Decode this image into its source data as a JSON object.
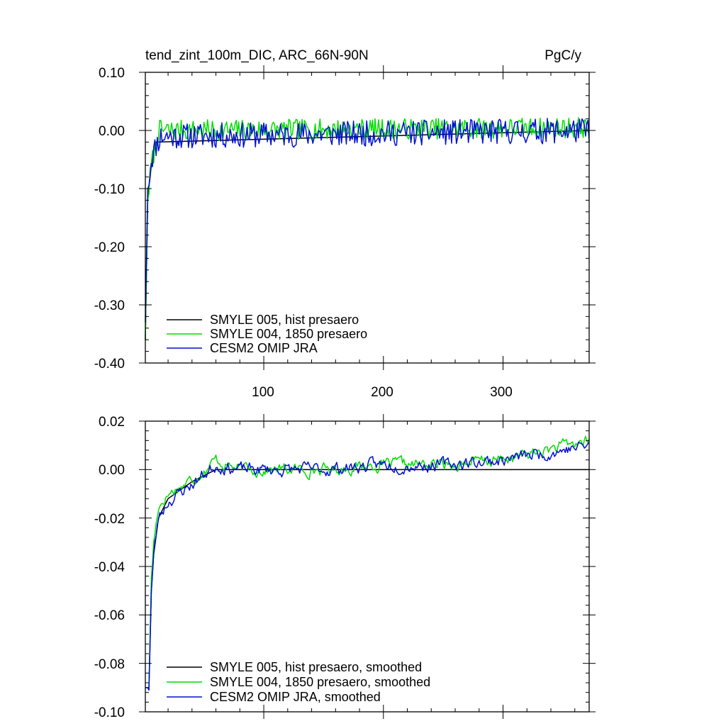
{
  "chart_data": [
    {
      "type": "line",
      "title": "tend_zint_100m_DIC, ARC_66N-90N",
      "units": "PgC/y",
      "xlim": [
        1,
        372
      ],
      "ylim": [
        -0.4,
        0.1
      ],
      "x_tick_labels": [
        "100",
        "200",
        "300"
      ],
      "y_tick_labels": [
        "0.10",
        "0.00",
        "-0.10",
        "-0.20",
        "-0.30",
        "-0.40"
      ],
      "legend": {
        "placement": "bottom-left",
        "entries": [
          "SMYLE 005, hist presaero",
          "SMYLE 004, 1850 presaero",
          "CESM2 OMIP JRA"
        ]
      },
      "series": [
        {
          "name": "SMYLE 005, hist presaero",
          "color": "#000000",
          "anchors": [
            [
              1,
              -0.36
            ],
            [
              3,
              -0.12
            ],
            [
              6,
              -0.06
            ],
            [
              10,
              -0.02
            ],
            [
              372,
              0.0
            ]
          ],
          "noise": 0,
          "seed": 3
        },
        {
          "name": "SMYLE 004, 1850 presaero",
          "color": "#00dd00",
          "anchors": [
            [
              1,
              -0.36
            ],
            [
              3,
              -0.12
            ],
            [
              6,
              -0.06
            ],
            [
              10,
              -0.02
            ],
            [
              12,
              0.0
            ],
            [
              372,
              0.005
            ]
          ],
          "noise": 0.018,
          "seed": 7
        },
        {
          "name": "CESM2 OMIP JRA",
          "color": "#0010d0",
          "anchors": [
            [
              1,
              -0.33
            ],
            [
              3,
              -0.1
            ],
            [
              6,
              -0.05
            ],
            [
              10,
              -0.025
            ],
            [
              14,
              -0.01
            ],
            [
              372,
              0.0
            ]
          ],
          "noise": 0.022,
          "seed": 11
        }
      ]
    },
    {
      "type": "line",
      "xlim": [
        1,
        372
      ],
      "ylim": [
        -0.1,
        0.02
      ],
      "y_tick_labels": [
        "0.02",
        "0.00",
        "-0.02",
        "-0.04",
        "-0.06",
        "-0.08",
        "-0.10"
      ],
      "legend": {
        "placement": "bottom-left",
        "entries": [
          "SMYLE 005, hist presaero, smoothed",
          "SMYLE 004, 1850 presaero, smoothed",
          "CESM2 OMIP JRA, smoothed"
        ]
      },
      "series": [
        {
          "name": "SMYLE 005, hist presaero, smoothed",
          "color": "#000000",
          "anchors": [
            [
              4,
              -0.09
            ],
            [
              6,
              -0.05
            ],
            [
              8,
              -0.035
            ],
            [
              12,
              -0.02
            ],
            [
              20,
              -0.012
            ],
            [
              40,
              -0.005
            ],
            [
              60,
              0.0
            ],
            [
              372,
              0.0
            ]
          ],
          "noise": 0,
          "seed": 5
        },
        {
          "name": "SMYLE 004, 1850 presaero, smoothed",
          "color": "#00dd00",
          "anchors": [
            [
              4,
              -0.09
            ],
            [
              6,
              -0.045
            ],
            [
              8,
              -0.03
            ],
            [
              12,
              -0.015
            ],
            [
              20,
              -0.01
            ],
            [
              40,
              -0.004
            ],
            [
              60,
              0.004
            ],
            [
              80,
              0.0
            ],
            [
              150,
              0.0
            ],
            [
              200,
              0.002
            ],
            [
              250,
              0.002
            ],
            [
              300,
              0.004
            ],
            [
              372,
              0.012
            ]
          ],
          "noise": 0.0035,
          "seed": 17
        },
        {
          "name": "CESM2 OMIP JRA, smoothed",
          "color": "#0010d0",
          "anchors": [
            [
              4,
              -0.09
            ],
            [
              6,
              -0.05
            ],
            [
              8,
              -0.035
            ],
            [
              12,
              -0.02
            ],
            [
              20,
              -0.013
            ],
            [
              40,
              -0.006
            ],
            [
              60,
              0.002
            ],
            [
              80,
              0.0
            ],
            [
              150,
              0.0
            ],
            [
              200,
              0.002
            ],
            [
              250,
              0.002
            ],
            [
              300,
              0.004
            ],
            [
              372,
              0.01
            ]
          ],
          "noise": 0.0038,
          "seed": 23
        }
      ]
    }
  ]
}
